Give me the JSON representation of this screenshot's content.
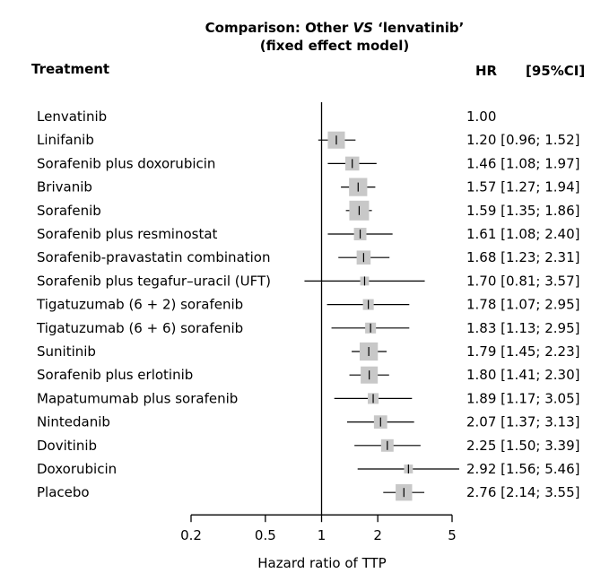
{
  "chart_data": {
    "type": "forest",
    "title_line1_pre": "Comparison: Other ",
    "title_line1_vs": "VS",
    "title_line1_post": " ‘lenvatinib’",
    "title_line2": "(fixed effect model)",
    "header_treatment": "Treatment",
    "header_hr": "HR",
    "header_ci": "[95%CI]",
    "xlabel": "Hazard ratio of TTP",
    "xscale": "log",
    "xlim": [
      0.2,
      5
    ],
    "xticks": [
      0.2,
      0.5,
      1,
      2,
      5
    ],
    "xtick_labels": [
      "0.2",
      "0.5",
      "1",
      "2",
      "5"
    ],
    "reference_line": 1,
    "marker_color": "#c8c8c8",
    "rows": [
      {
        "treatment": "Lenvatinib",
        "hr": 1.0,
        "lo": null,
        "hi": null,
        "weight": 0,
        "text": "1.00"
      },
      {
        "treatment": "Linifanib",
        "hr": 1.2,
        "lo": 0.96,
        "hi": 1.52,
        "weight": 0.75,
        "text": "1.20 [0.96; 1.52]"
      },
      {
        "treatment": "Sorafenib plus doxorubicin",
        "hr": 1.46,
        "lo": 1.08,
        "hi": 1.97,
        "weight": 0.5,
        "text": "1.46 [1.08; 1.97]"
      },
      {
        "treatment": "Brivanib",
        "hr": 1.57,
        "lo": 1.27,
        "hi": 1.94,
        "weight": 0.85,
        "text": "1.57 [1.27; 1.94]"
      },
      {
        "treatment": "Sorafenib",
        "hr": 1.59,
        "lo": 1.35,
        "hi": 1.86,
        "weight": 1.0,
        "text": "1.59 [1.35; 1.86]"
      },
      {
        "treatment": "Sorafenib plus resminostat",
        "hr": 1.61,
        "lo": 1.08,
        "hi": 2.4,
        "weight": 0.4,
        "text": "1.61 [1.08; 2.40]"
      },
      {
        "treatment": "Sorafenib-pravastatin combination",
        "hr": 1.68,
        "lo": 1.23,
        "hi": 2.31,
        "weight": 0.5,
        "text": "1.68 [1.23; 2.31]"
      },
      {
        "treatment": "Sorafenib plus tegafur–uracil (UFT)",
        "hr": 1.7,
        "lo": 0.81,
        "hi": 3.57,
        "weight": 0.2,
        "text": "1.70 [0.81; 3.57]"
      },
      {
        "treatment": "Tigatuzumab (6 + 2) sorafenib",
        "hr": 1.78,
        "lo": 1.07,
        "hi": 2.95,
        "weight": 0.3,
        "text": "1.78 [1.07; 2.95]"
      },
      {
        "treatment": "Tigatuzumab (6 + 6) sorafenib",
        "hr": 1.83,
        "lo": 1.13,
        "hi": 2.95,
        "weight": 0.3,
        "text": "1.83 [1.13; 2.95]"
      },
      {
        "treatment": "Sunitinib",
        "hr": 1.79,
        "lo": 1.45,
        "hi": 2.23,
        "weight": 0.85,
        "text": "1.79 [1.45; 2.23]"
      },
      {
        "treatment": "Sorafenib plus erlotinib",
        "hr": 1.8,
        "lo": 1.41,
        "hi": 2.3,
        "weight": 0.75,
        "text": "1.80 [1.41; 2.30]"
      },
      {
        "treatment": "Mapatumumab plus sorafenib",
        "hr": 1.89,
        "lo": 1.17,
        "hi": 3.05,
        "weight": 0.3,
        "text": "1.89 [1.17; 3.05]"
      },
      {
        "treatment": "Nintedanib",
        "hr": 2.07,
        "lo": 1.37,
        "hi": 3.13,
        "weight": 0.45,
        "text": "2.07 [1.37; 3.13]"
      },
      {
        "treatment": "Dovitinib",
        "hr": 2.25,
        "lo": 1.5,
        "hi": 3.39,
        "weight": 0.4,
        "text": "2.25 [1.50; 3.39]"
      },
      {
        "treatment": "Doxorubicin",
        "hr": 2.92,
        "lo": 1.56,
        "hi": 5.46,
        "weight": 0.2,
        "text": "2.92 [1.56; 5.46]"
      },
      {
        "treatment": "Placebo",
        "hr": 2.76,
        "lo": 2.14,
        "hi": 3.55,
        "weight": 0.7,
        "text": "2.76 [2.14; 3.55]"
      }
    ]
  }
}
